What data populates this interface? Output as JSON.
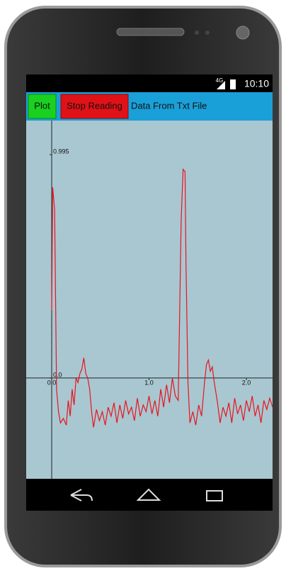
{
  "status_bar": {
    "network": "4G",
    "time": "10:10"
  },
  "toolbar": {
    "buttons": [
      "Plot",
      "Stop Reading"
    ],
    "label": "Data From Txt File"
  },
  "chart_data": {
    "type": "line",
    "x": [
      0.0,
      0.01,
      0.03,
      0.05,
      0.07,
      0.09,
      0.12,
      0.15,
      0.17,
      0.19,
      0.21,
      0.23,
      0.25,
      0.27,
      0.29,
      0.31,
      0.33,
      0.35,
      0.37,
      0.39,
      0.41,
      0.43,
      0.46,
      0.49,
      0.52,
      0.55,
      0.58,
      0.61,
      0.64,
      0.67,
      0.7,
      0.73,
      0.76,
      0.79,
      0.82,
      0.85,
      0.88,
      0.91,
      0.94,
      0.97,
      1.0,
      1.03,
      1.06,
      1.09,
      1.12,
      1.15,
      1.18,
      1.21,
      1.24,
      1.27,
      1.3,
      1.33,
      1.35,
      1.37,
      1.38,
      1.4,
      1.42,
      1.45,
      1.48,
      1.51,
      1.54,
      1.57,
      1.59,
      1.61,
      1.63,
      1.65,
      1.67,
      1.7,
      1.73,
      1.76,
      1.79,
      1.82,
      1.85,
      1.88,
      1.91,
      1.94,
      1.97,
      2.0,
      2.03,
      2.06,
      2.09,
      2.12,
      2.15,
      2.18,
      2.21,
      2.24,
      2.27
    ],
    "series": [
      {
        "color": "#e8141e",
        "values": [
          0.3,
          0.85,
          0.75,
          -0.05,
          -0.15,
          -0.2,
          -0.18,
          -0.21,
          -0.1,
          -0.17,
          -0.05,
          -0.12,
          0.0,
          -0.02,
          0.02,
          0.04,
          0.09,
          0.02,
          0.0,
          -0.05,
          -0.15,
          -0.22,
          -0.14,
          -0.19,
          -0.15,
          -0.21,
          -0.13,
          -0.17,
          -0.11,
          -0.2,
          -0.12,
          -0.18,
          -0.1,
          -0.16,
          -0.13,
          -0.19,
          -0.09,
          -0.17,
          -0.12,
          -0.15,
          -0.08,
          -0.16,
          -0.1,
          -0.17,
          -0.05,
          -0.13,
          -0.03,
          -0.11,
          0.0,
          -0.08,
          -0.1,
          0.7,
          0.93,
          0.92,
          0.5,
          -0.02,
          -0.2,
          -0.15,
          -0.21,
          -0.12,
          -0.17,
          -0.02,
          0.06,
          0.08,
          0.03,
          0.05,
          -0.02,
          -0.1,
          -0.2,
          -0.13,
          -0.17,
          -0.11,
          -0.2,
          -0.09,
          -0.16,
          -0.12,
          -0.19,
          -0.1,
          -0.15,
          -0.08,
          -0.17,
          -0.12,
          -0.2,
          -0.1,
          -0.14,
          -0.09,
          -0.13
        ]
      }
    ],
    "xlim": [
      -0.262,
      2.269
    ],
    "ylim": [
      -0.449,
      1.147
    ],
    "xticks": [
      {
        "value": 0,
        "label": "0.0"
      },
      {
        "value": 1,
        "label": "1.0"
      },
      {
        "value": 2,
        "label": "2.0"
      }
    ],
    "yticks": [
      {
        "value": 0,
        "label": "0.0"
      },
      0.995
    ]
  }
}
